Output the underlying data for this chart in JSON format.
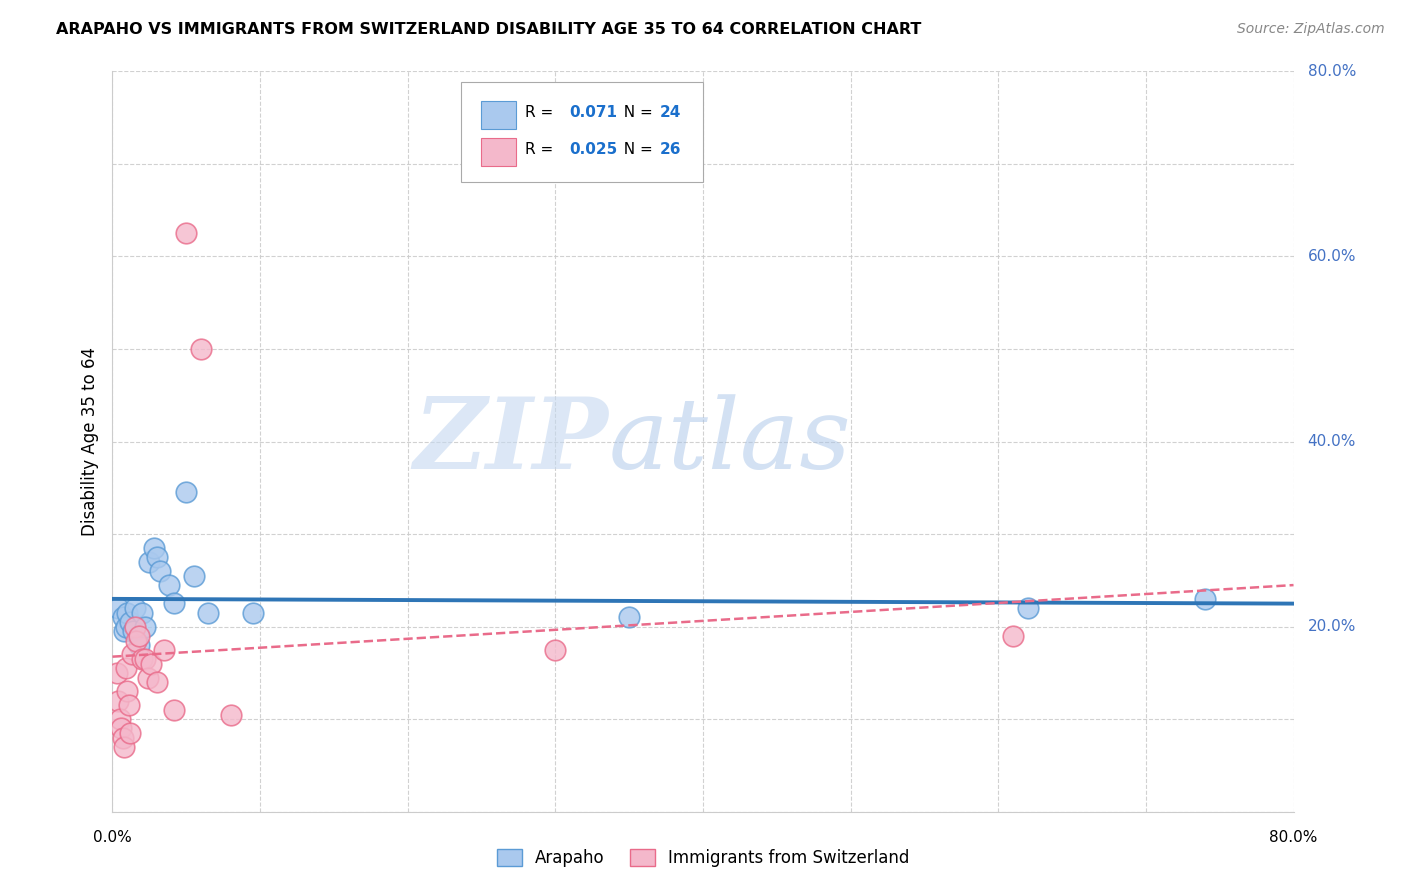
{
  "title": "ARAPAHO VS IMMIGRANTS FROM SWITZERLAND DISABILITY AGE 35 TO 64 CORRELATION CHART",
  "source": "Source: ZipAtlas.com",
  "ylabel": "Disability Age 35 to 64",
  "xlim": [
    0.0,
    0.8
  ],
  "ylim": [
    0.0,
    0.8
  ],
  "xticks": [
    0.0,
    0.1,
    0.2,
    0.3,
    0.4,
    0.5,
    0.6,
    0.7,
    0.8
  ],
  "yticks": [
    0.0,
    0.1,
    0.2,
    0.3,
    0.4,
    0.5,
    0.6,
    0.7,
    0.8
  ],
  "xticklabels": [
    "0.0%",
    "",
    "",
    "",
    "",
    "",
    "",
    "",
    "80.0%"
  ],
  "yticklabels_right": [
    "",
    "",
    "20.0%",
    "",
    "40.0%",
    "",
    "60.0%",
    "",
    "80.0%"
  ],
  "grid_color": "#cccccc",
  "watermark_zip": "ZIP",
  "watermark_atlas": "atlas",
  "series": [
    {
      "name": "Arapaho",
      "R": 0.071,
      "N": 24,
      "color": "#aac9ee",
      "edge_color": "#5b9bd5",
      "line_color": "#2e75b6",
      "line_style": "solid",
      "x": [
        0.004,
        0.007,
        0.008,
        0.009,
        0.01,
        0.012,
        0.014,
        0.015,
        0.018,
        0.02,
        0.022,
        0.025,
        0.028,
        0.03,
        0.032,
        0.038,
        0.042,
        0.05,
        0.055,
        0.065,
        0.095,
        0.35,
        0.62,
        0.74
      ],
      "y": [
        0.22,
        0.21,
        0.195,
        0.2,
        0.215,
        0.205,
        0.195,
        0.22,
        0.18,
        0.215,
        0.2,
        0.27,
        0.285,
        0.275,
        0.26,
        0.245,
        0.225,
        0.345,
        0.255,
        0.215,
        0.215,
        0.21,
        0.22,
        0.23
      ]
    },
    {
      "name": "Immigrants from Switzerland",
      "R": 0.025,
      "N": 26,
      "color": "#f4b8cb",
      "edge_color": "#e96b8a",
      "line_color": "#e96b8a",
      "line_style": "dashed",
      "x": [
        0.003,
        0.004,
        0.005,
        0.006,
        0.007,
        0.008,
        0.009,
        0.01,
        0.011,
        0.012,
        0.013,
        0.015,
        0.016,
        0.018,
        0.02,
        0.022,
        0.024,
        0.026,
        0.03,
        0.035,
        0.042,
        0.05,
        0.06,
        0.08,
        0.3,
        0.61
      ],
      "y": [
        0.15,
        0.12,
        0.1,
        0.09,
        0.08,
        0.07,
        0.155,
        0.13,
        0.115,
        0.085,
        0.17,
        0.2,
        0.185,
        0.19,
        0.165,
        0.165,
        0.145,
        0.16,
        0.14,
        0.175,
        0.11,
        0.625,
        0.5,
        0.105,
        0.175,
        0.19
      ]
    }
  ],
  "legend_color": "#1a6fcc",
  "background_color": "#ffffff"
}
